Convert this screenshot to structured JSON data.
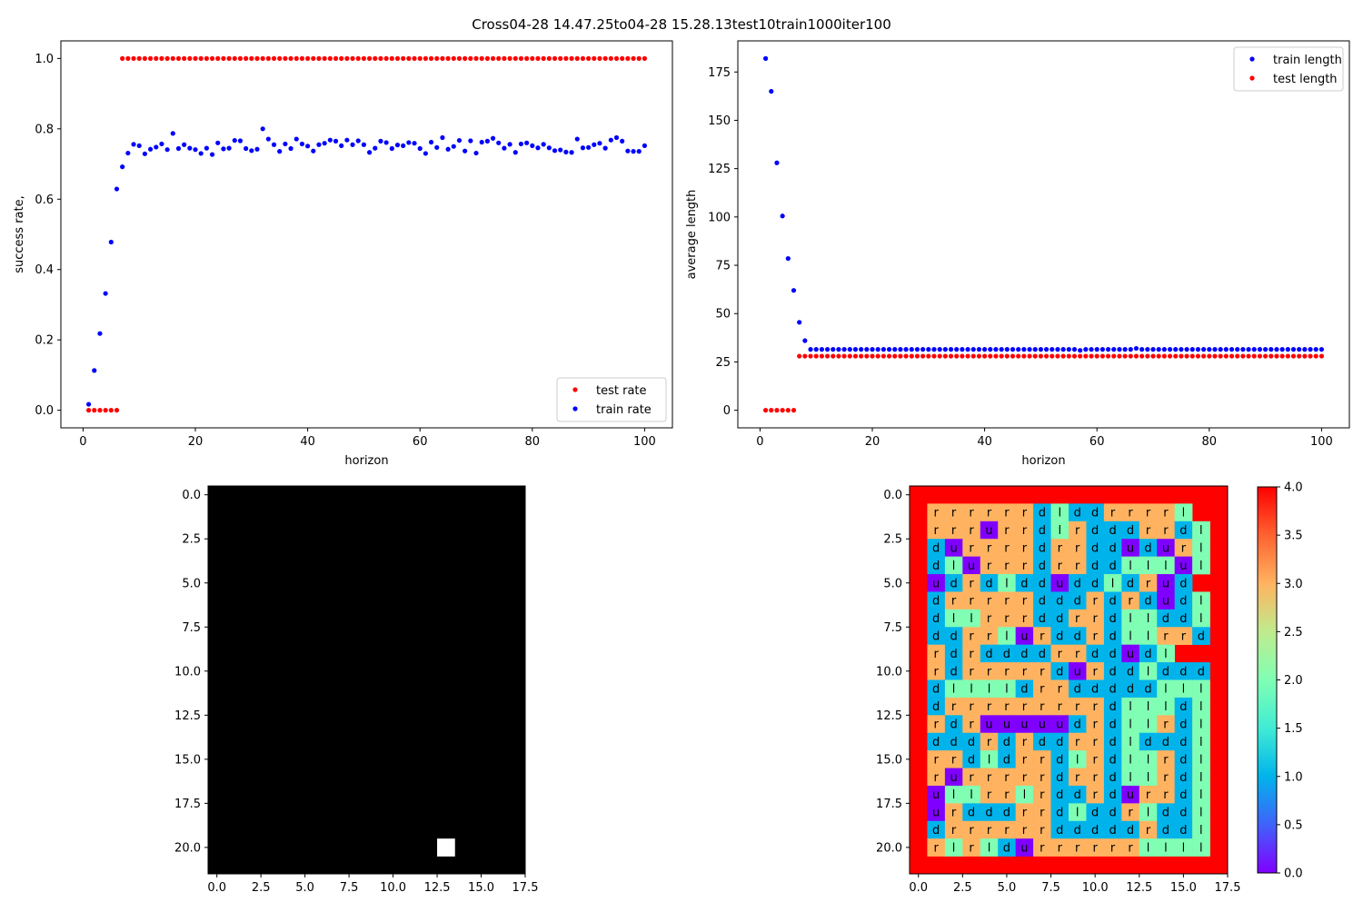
{
  "title": "Cross04-28 14.47.25to04-28 15.28.13test10train1000iter100",
  "colors": {
    "train": "#0000ff",
    "test": "#ff0000",
    "policy_map": {
      "0": "#8000ff",
      "1": "#00b4eb",
      "2": "#80ffb4",
      "3": "#ffb360",
      "4": "#ff0000"
    }
  },
  "chart_data": [
    {
      "type": "scatter",
      "xlabel": "horizon",
      "ylabel": "success rate,",
      "xlim": [
        -3.95,
        104.95
      ],
      "ylim": [
        -0.05,
        1.05
      ],
      "xticks": [
        0,
        20,
        40,
        60,
        80,
        100
      ],
      "yticks": [
        0.0,
        0.2,
        0.4,
        0.6,
        0.8,
        1.0
      ],
      "xtick_labels": [
        "0",
        "20",
        "40",
        "60",
        "80",
        "100"
      ],
      "ytick_labels": [
        "0.0",
        "0.2",
        "0.4",
        "0.6",
        "0.8",
        "1.0"
      ],
      "legend": "lower-right",
      "series": [
        {
          "name": "test rate",
          "color": "#ff0000",
          "x": [
            1,
            2,
            3,
            4,
            5,
            6,
            7,
            8,
            9,
            10,
            11,
            12,
            13,
            14,
            15,
            16,
            17,
            18,
            19,
            20,
            21,
            22,
            23,
            24,
            25,
            26,
            27,
            28,
            29,
            30,
            31,
            32,
            33,
            34,
            35,
            36,
            37,
            38,
            39,
            40,
            41,
            42,
            43,
            44,
            45,
            46,
            47,
            48,
            49,
            50,
            51,
            52,
            53,
            54,
            55,
            56,
            57,
            58,
            59,
            60,
            61,
            62,
            63,
            64,
            65,
            66,
            67,
            68,
            69,
            70,
            71,
            72,
            73,
            74,
            75,
            76,
            77,
            78,
            79,
            80,
            81,
            82,
            83,
            84,
            85,
            86,
            87,
            88,
            89,
            90,
            91,
            92,
            93,
            94,
            95,
            96,
            97,
            98,
            99,
            100
          ],
          "y": [
            0,
            0,
            0,
            0,
            0,
            0,
            1,
            1,
            1,
            1,
            1,
            1,
            1,
            1,
            1,
            1,
            1,
            1,
            1,
            1,
            1,
            1,
            1,
            1,
            1,
            1,
            1,
            1,
            1,
            1,
            1,
            1,
            1,
            1,
            1,
            1,
            1,
            1,
            1,
            1,
            1,
            1,
            1,
            1,
            1,
            1,
            1,
            1,
            1,
            1,
            1,
            1,
            1,
            1,
            1,
            1,
            1,
            1,
            1,
            1,
            1,
            1,
            1,
            1,
            1,
            1,
            1,
            1,
            1,
            1,
            1,
            1,
            1,
            1,
            1,
            1,
            1,
            1,
            1,
            1,
            1,
            1,
            1,
            1,
            1,
            1,
            1,
            1,
            1,
            1,
            1,
            1,
            1,
            1,
            1,
            1,
            1,
            1,
            1,
            1
          ]
        },
        {
          "name": "train rate",
          "color": "#0000ff",
          "x": [
            1,
            2,
            3,
            4,
            5,
            6,
            7,
            8,
            9,
            10,
            11,
            12,
            13,
            14,
            15,
            16,
            17,
            18,
            19,
            20,
            21,
            22,
            23,
            24,
            25,
            26,
            27,
            28,
            29,
            30,
            31,
            32,
            33,
            34,
            35,
            36,
            37,
            38,
            39,
            40,
            41,
            42,
            43,
            44,
            45,
            46,
            47,
            48,
            49,
            50,
            51,
            52,
            53,
            54,
            55,
            56,
            57,
            58,
            59,
            60,
            61,
            62,
            63,
            64,
            65,
            66,
            67,
            68,
            69,
            70,
            71,
            72,
            73,
            74,
            75,
            76,
            77,
            78,
            79,
            80,
            81,
            82,
            83,
            84,
            85,
            86,
            87,
            88,
            89,
            90,
            91,
            92,
            93,
            94,
            95,
            96,
            97,
            98,
            99,
            100
          ],
          "y": [
            0.017,
            0.113,
            0.218,
            0.332,
            0.478,
            0.629,
            0.692,
            0.731,
            0.756,
            0.752,
            0.729,
            0.742,
            0.748,
            0.757,
            0.741,
            0.787,
            0.744,
            0.755,
            0.745,
            0.741,
            0.73,
            0.745,
            0.727,
            0.76,
            0.743,
            0.745,
            0.767,
            0.766,
            0.744,
            0.738,
            0.742,
            0.8,
            0.771,
            0.755,
            0.736,
            0.757,
            0.744,
            0.771,
            0.757,
            0.751,
            0.737,
            0.755,
            0.759,
            0.768,
            0.765,
            0.752,
            0.768,
            0.755,
            0.766,
            0.755,
            0.733,
            0.745,
            0.765,
            0.761,
            0.744,
            0.754,
            0.752,
            0.761,
            0.759,
            0.744,
            0.73,
            0.762,
            0.747,
            0.775,
            0.742,
            0.75,
            0.767,
            0.737,
            0.766,
            0.731,
            0.762,
            0.765,
            0.773,
            0.76,
            0.745,
            0.756,
            0.733,
            0.757,
            0.76,
            0.752,
            0.746,
            0.756,
            0.746,
            0.738,
            0.74,
            0.734,
            0.733,
            0.771,
            0.746,
            0.747,
            0.755,
            0.759,
            0.745,
            0.768,
            0.775,
            0.765,
            0.737,
            0.736,
            0.736,
            0.752
          ]
        }
      ]
    },
    {
      "type": "scatter",
      "xlabel": "horizon",
      "ylabel": "average length",
      "xlim": [
        -3.95,
        104.95
      ],
      "ylim": [
        -9.1,
        191.1
      ],
      "xticks": [
        0,
        20,
        40,
        60,
        80,
        100
      ],
      "yticks": [
        0,
        25,
        50,
        75,
        100,
        125,
        150,
        175
      ],
      "xtick_labels": [
        "0",
        "20",
        "40",
        "60",
        "80",
        "100"
      ],
      "ytick_labels": [
        "0",
        "25",
        "50",
        "75",
        "100",
        "125",
        "150",
        "175"
      ],
      "legend": "upper-right",
      "series": [
        {
          "name": "train length",
          "color": "#0000ff",
          "x": [
            1,
            2,
            3,
            4,
            5,
            6,
            7,
            8,
            9,
            10,
            11,
            12,
            13,
            14,
            15,
            16,
            17,
            18,
            19,
            20,
            21,
            22,
            23,
            24,
            25,
            26,
            27,
            28,
            29,
            30,
            31,
            32,
            33,
            34,
            35,
            36,
            37,
            38,
            39,
            40,
            41,
            42,
            43,
            44,
            45,
            46,
            47,
            48,
            49,
            50,
            51,
            52,
            53,
            54,
            55,
            56,
            57,
            58,
            59,
            60,
            61,
            62,
            63,
            64,
            65,
            66,
            67,
            68,
            69,
            70,
            71,
            72,
            73,
            74,
            75,
            76,
            77,
            78,
            79,
            80,
            81,
            82,
            83,
            84,
            85,
            86,
            87,
            88,
            89,
            90,
            91,
            92,
            93,
            94,
            95,
            96,
            97,
            98,
            99,
            100
          ],
          "y": [
            182,
            165,
            128,
            100.5,
            78.5,
            62,
            45.5,
            36,
            31.5,
            31.5,
            31.5,
            31.5,
            31.5,
            31.5,
            31.5,
            31.5,
            31.5,
            31.5,
            31.5,
            31.5,
            31.5,
            31.5,
            31.5,
            31.5,
            31.5,
            31.5,
            31.5,
            31.5,
            31.5,
            31.5,
            31.5,
            31.5,
            31.5,
            31.5,
            31.5,
            31.5,
            31.5,
            31.5,
            31.5,
            31.5,
            31.5,
            31.5,
            31.5,
            31.5,
            31.5,
            31.5,
            31.5,
            31.5,
            31.5,
            31.5,
            31.5,
            31.5,
            31.5,
            31.5,
            31.5,
            31.5,
            31,
            31.5,
            31.5,
            31.5,
            31.5,
            31.5,
            31.5,
            31.5,
            31.5,
            31.5,
            32,
            31.5,
            31.5,
            31.5,
            31.5,
            31.5,
            31.5,
            31.5,
            31.5,
            31.5,
            31.5,
            31.5,
            31.5,
            31.5,
            31.5,
            31.5,
            31.5,
            31.5,
            31.5,
            31.5,
            31.5,
            31.5,
            31.5,
            31.5,
            31.5,
            31.5,
            31.5,
            31.5,
            31.5,
            31.5,
            31.5,
            31.5,
            31.5,
            31.5
          ]
        },
        {
          "name": "test length",
          "color": "#ff0000",
          "x": [
            1,
            2,
            3,
            4,
            5,
            6,
            7,
            8,
            9,
            10,
            11,
            12,
            13,
            14,
            15,
            16,
            17,
            18,
            19,
            20,
            21,
            22,
            23,
            24,
            25,
            26,
            27,
            28,
            29,
            30,
            31,
            32,
            33,
            34,
            35,
            36,
            37,
            38,
            39,
            40,
            41,
            42,
            43,
            44,
            45,
            46,
            47,
            48,
            49,
            50,
            51,
            52,
            53,
            54,
            55,
            56,
            57,
            58,
            59,
            60,
            61,
            62,
            63,
            64,
            65,
            66,
            67,
            68,
            69,
            70,
            71,
            72,
            73,
            74,
            75,
            76,
            77,
            78,
            79,
            80,
            81,
            82,
            83,
            84,
            85,
            86,
            87,
            88,
            89,
            90,
            91,
            92,
            93,
            94,
            95,
            96,
            97,
            98,
            99,
            100
          ],
          "y": [
            0,
            0,
            0,
            0,
            0,
            0,
            28,
            28,
            28,
            28,
            28,
            28,
            28,
            28,
            28,
            28,
            28,
            28,
            28,
            28,
            28,
            28,
            28,
            28,
            28,
            28,
            28,
            28,
            28,
            28,
            28,
            28,
            28,
            28,
            28,
            28,
            28,
            28,
            28,
            28,
            28,
            28,
            28,
            28,
            28,
            28,
            28,
            28,
            28,
            28,
            28,
            28,
            28,
            28,
            28,
            28,
            28,
            28,
            28,
            28,
            28,
            28,
            28,
            28,
            28,
            28,
            28,
            28,
            28,
            28,
            28,
            28,
            28,
            28,
            28,
            28,
            28,
            28,
            28,
            28,
            28,
            28,
            28,
            28,
            28,
            28,
            28,
            28,
            28,
            28,
            28,
            28,
            28,
            28,
            28,
            28,
            28,
            28,
            28,
            28
          ]
        }
      ]
    },
    {
      "type": "heatmap",
      "colormap": "gray",
      "rows": 22,
      "cols": 18,
      "xlim": [
        -0.5,
        17.5
      ],
      "ylim": [
        21.5,
        -0.5
      ],
      "xticks": [
        0,
        2.5,
        5,
        7.5,
        10,
        12.5,
        15,
        17.5
      ],
      "yticks": [
        0,
        2.5,
        5,
        7.5,
        10,
        12.5,
        15,
        17.5,
        20
      ],
      "xtick_labels": [
        "0.0",
        "2.5",
        "5.0",
        "7.5",
        "10.0",
        "12.5",
        "15.0",
        "17.5"
      ],
      "ytick_labels": [
        "0.0",
        "2.5",
        "5.0",
        "7.5",
        "10.0",
        "12.5",
        "15.0",
        "17.5",
        "20.0"
      ],
      "background": 0,
      "hot_cells": [
        {
          "row": 20,
          "col": 13,
          "value": 1
        }
      ]
    },
    {
      "type": "heatmap",
      "colormap": "rainbow",
      "rows": 22,
      "cols": 18,
      "xlim": [
        -0.5,
        17.5
      ],
      "ylim": [
        21.5,
        -0.5
      ],
      "xticks": [
        0,
        2.5,
        5,
        7.5,
        10,
        12.5,
        15,
        17.5
      ],
      "yticks": [
        0,
        2.5,
        5,
        7.5,
        10,
        12.5,
        15,
        17.5,
        20
      ],
      "xtick_labels": [
        "0.0",
        "2.5",
        "5.0",
        "7.5",
        "10.0",
        "12.5",
        "15.0",
        "17.5"
      ],
      "ytick_labels": [
        "0.0",
        "2.5",
        "5.0",
        "7.5",
        "10.0",
        "12.5",
        "15.0",
        "17.5",
        "20.0"
      ],
      "colorbar": {
        "min": 0.0,
        "max": 4.0,
        "ticks": [
          "0.0",
          "0.5",
          "1.0",
          "1.5",
          "2.0",
          "2.5",
          "3.0",
          "3.5",
          "4.0"
        ]
      },
      "action_values": {
        "u": 0,
        "d": 1,
        "l": 2,
        "r": 3,
        "wall": 4
      },
      "policy": [
        "rrrrrrdlddrrrrl",
        "rrrurrdlrdddrrdl",
        "durrrrdrrddudurl",
        "dlurrrdrrddlllul",
        "udrdldduddldrud",
        "drrrrrdddrdrdudl",
        "dllrrrddrrdllddl",
        "ddrrlurddrdllrrd",
        "rdrddddrrddudl",
        "rdrrrrrdurddldddd",
        "dlllldrrdddddllldd",
        "drrrrrrrrrdllldl",
        "rdruuuuudrdllrdl",
        "dddrdrddrrdldddl",
        "rrdldrrdlrdllrdl",
        "rurrrrrdrrdllrdl",
        "ullrrlrddrdurrdl",
        "urdddrrdlddrlddl",
        "drrrrrrdddddrddl",
        "rlrldurrrrrrllll"
      ]
    }
  ]
}
